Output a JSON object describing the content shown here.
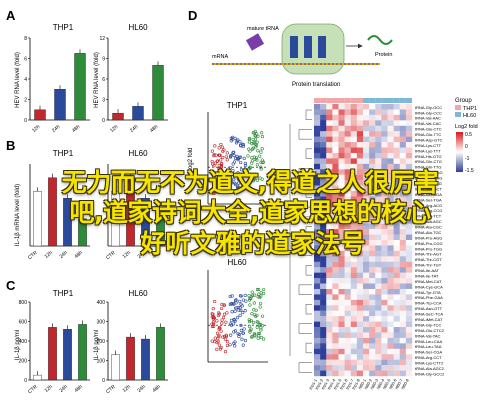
{
  "panels": {
    "A": {
      "letter": "A",
      "titles": [
        "THP1",
        "HL60"
      ],
      "ylabel": "HEV RNA level (fold)",
      "x": [
        "12h",
        "24h",
        "48h"
      ],
      "thp1": [
        1,
        3,
        6.5
      ],
      "hl60": [
        1,
        2,
        8
      ],
      "ymax_thp1": 8,
      "ymax_hl60": 12,
      "yticks_thp1": [
        "0",
        "2",
        "4",
        "6",
        "8"
      ],
      "yticks_hl60": [
        "0",
        "3",
        "6",
        "9",
        "12"
      ]
    },
    "B": {
      "letter": "B",
      "titles": [
        "THP1",
        "HL60"
      ],
      "ylabel": "IL-1β mRNA level (fold)",
      "x": [
        "CTR",
        "12h",
        "24h",
        "48h"
      ],
      "thp1": [
        0.8,
        1.0,
        0.7,
        0.4
      ],
      "hl60": [
        0.8,
        1.0,
        0.7,
        0.5
      ],
      "ymax": 1.2
    },
    "C": {
      "letter": "C",
      "titles": [
        "THP1",
        "HL60"
      ],
      "ylabel": "IL-1β pg/ml",
      "x": [
        "CTR",
        "12h",
        "24h",
        "48h"
      ],
      "thp1": [
        50,
        540,
        520,
        570
      ],
      "hl60": [
        130,
        220,
        210,
        270
      ],
      "ymax_thp1": 800,
      "ymax_hl60": 400,
      "yticks_thp1": [
        "0",
        "200",
        "400",
        "600",
        "800"
      ],
      "yticks_hl60": [
        "0",
        "100",
        "200",
        "300",
        "400"
      ]
    },
    "D": {
      "letter": "D",
      "mature_label": "mature tRNA",
      "mrna_label": "mRNA",
      "protein_label": "Protein",
      "translation_label": "Protein translation",
      "scatter_titles": [
        "THP1",
        "HL60"
      ],
      "scatter_ylabel": "Log2 fold",
      "legend": {
        "title": "Group",
        "entries": [
          "THP1",
          "HL60"
        ],
        "scale_title": "Log2 fold",
        "scale_ticks": [
          "0.5",
          "0",
          "-1",
          "-1.5"
        ]
      },
      "rows": [
        "tRNA-Gly-GCC",
        "tRNA-Gly-CCC",
        "tRNA-Val-AAC",
        "tRNA-Val-CAC",
        "tRNA-Glu-CTC",
        "tRNA-Glu-TTC",
        "tRNA-Asp-GTC",
        "tRNA-Lys-CTT",
        "tRNA-Lys-TTT",
        "tRNA-His-GTG",
        "tRNA-Gln-CTG",
        "tRNA-Gln-TTG",
        "tRNA-Leu-CAG",
        "tRNA-Leu-AAG",
        "tRNA-Leu-TAG",
        "tRNA-Ser-GCT",
        "tRNA-Ser-AGA",
        "tRNA-Ser-TGA",
        "tRNA-Arg-ACG",
        "tRNA-Arg-CCG",
        "tRNA-Arg-TCT",
        "tRNA-Ala-AGC",
        "tRNA-Ala-CGC",
        "tRNA-Ala-TGC",
        "tRNA-Pro-AGG",
        "tRNA-Pro-CGG",
        "tRNA-Pro-TGG",
        "tRNA-Thr-AGT",
        "tRNA-Thr-CGT",
        "tRNA-Thr-TGT",
        "tRNA-Ile-AAT",
        "tRNA-Ile-TAT",
        "tRNA-Met-CAT",
        "tRNA-Cys-GCA",
        "tRNA-Tyr-GTA",
        "tRNA-Phe-GAA",
        "tRNA-Trp-CCA",
        "tRNA-Asn-GTT",
        "tRNA-SeC-TCA",
        "tRNA-iMet-CAT",
        "tRNA-Gly-TCC",
        "tRNA-Glu-CTC2",
        "tRNA-Val-TAC",
        "tRNA-Leu-CAA",
        "tRNA-Leu-TAA",
        "tRNA-Ser-CGA",
        "tRNA-Arg-CCT",
        "tRNA-Lys-CTT2",
        "tRNA-Ala-AGC2",
        "tRNA-Gly-GCC2"
      ],
      "cols": [
        "thp1-1",
        "thp1-2",
        "thp1-3",
        "thp1-4",
        "thp1-5",
        "thp1-6",
        "thp1-7",
        "thp1-8",
        "hl60-1",
        "hl60-2",
        "hl60-3",
        "hl60-4",
        "hl60-5",
        "hl60-6",
        "hl60-7",
        "hl60-8"
      ]
    }
  },
  "overlay": {
    "line1": "无力而无不为道文,得道之人很厉害",
    "line2": "吧,道家诗词大全,道家思想的核心",
    "line3": "好听文雅的道家法号"
  },
  "colors": {
    "bar_blue": "#2b4a9b",
    "bar_red": "#c0282d",
    "bar_green": "#2e8b3a",
    "heat_hi": "#d7191c",
    "heat_lo": "#2c3e99",
    "group_thp1": "#f4a6a6",
    "group_hl60": "#7fb7d6"
  }
}
